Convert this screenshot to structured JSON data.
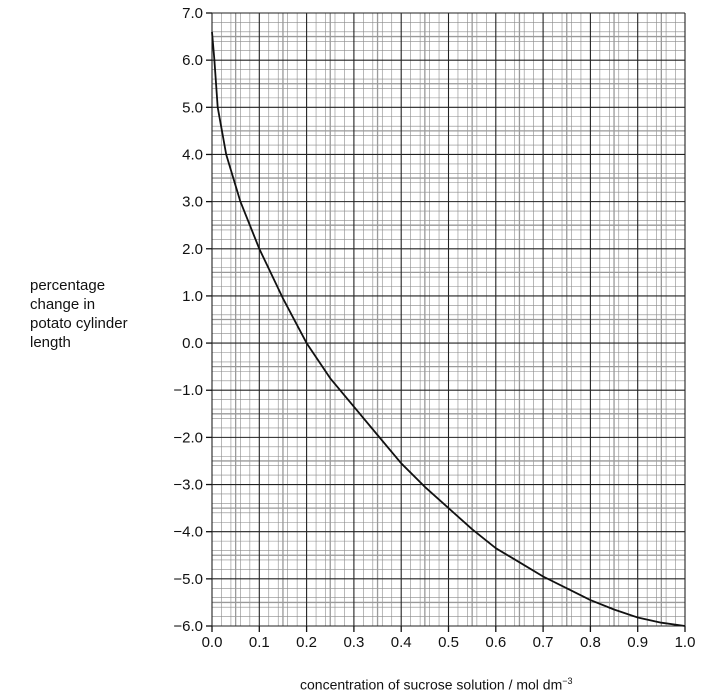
{
  "chart_data": {
    "type": "line",
    "xlabel": "concentration of sucrose solution / mol dm",
    "xlabel_sup": "−3",
    "ylabel_lines": [
      "percentage",
      "change in",
      "potato cylinder",
      "length"
    ],
    "xlim": [
      0.0,
      1.0
    ],
    "ylim": [
      -6.0,
      7.0
    ],
    "grid": true,
    "x_ticks": [
      "0.0",
      "0.1",
      "0.2",
      "0.3",
      "0.4",
      "0.5",
      "0.6",
      "0.7",
      "0.8",
      "0.9",
      "1.0"
    ],
    "y_ticks": [
      "7.0",
      "6.0",
      "5.0",
      "4.0",
      "3.0",
      "2.0",
      "1.0",
      "0.0",
      "−1.0",
      "−2.0",
      "−3.0",
      "−4.0",
      "−5.0",
      "−6.0"
    ],
    "series": [
      {
        "x": [
          0,
          0.005,
          0.012,
          0.03,
          0.06,
          0.1,
          0.15,
          0.2,
          0.25,
          0.3,
          0.35,
          0.4,
          0.45,
          0.5,
          0.55,
          0.6,
          0.65,
          0.7,
          0.75,
          0.8,
          0.85,
          0.9,
          0.95,
          1.0
        ],
        "y": [
          6.6,
          6.0,
          5.0,
          4.0,
          3.0,
          2.0,
          0.95,
          0.0,
          -0.75,
          -1.35,
          -1.95,
          -2.55,
          -3.05,
          -3.5,
          -3.95,
          -4.35,
          -4.65,
          -4.95,
          -5.2,
          -5.45,
          -5.65,
          -5.82,
          -5.93,
          -6.0
        ]
      }
    ]
  }
}
